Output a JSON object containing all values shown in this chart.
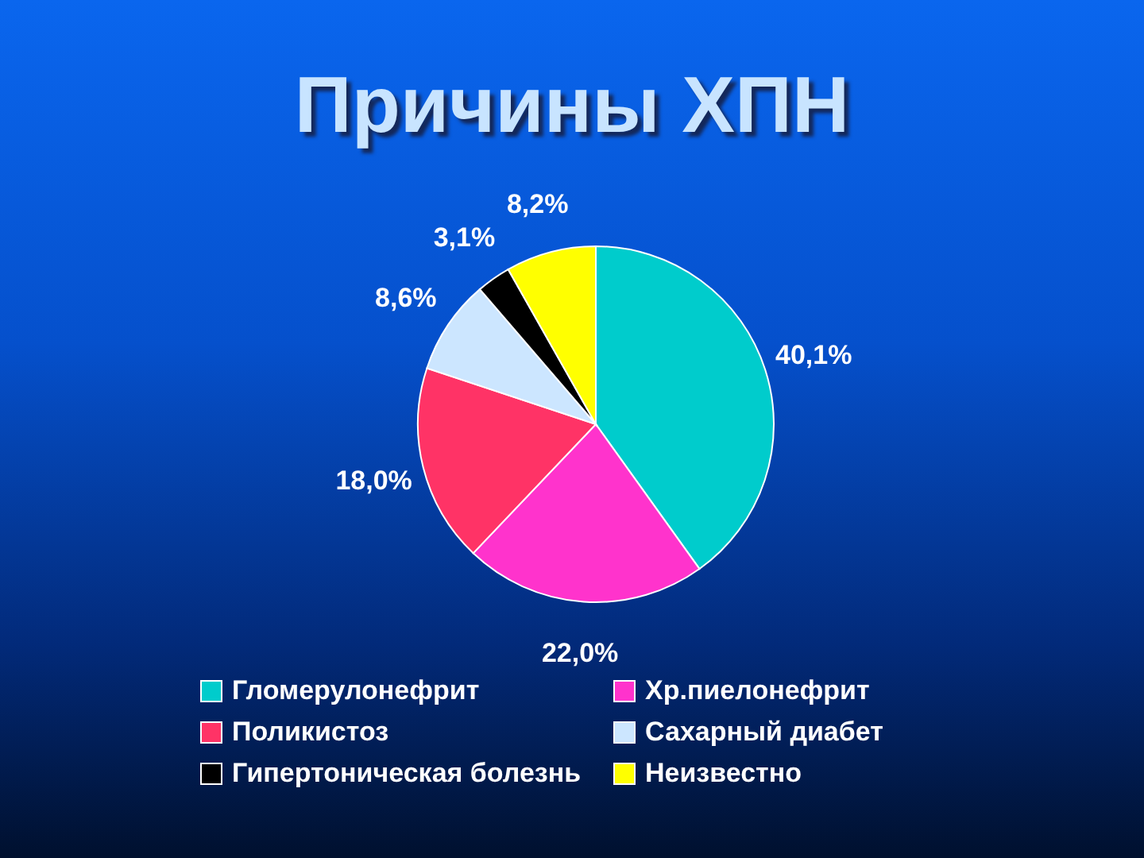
{
  "chart_data": {
    "type": "pie",
    "title": "Причины ХПН",
    "categories": [
      "Гломерулонефрит",
      "Хр.пиелонефрит",
      "Поликистоз",
      "Сахарный диабет",
      "Гипертоническая болезнь",
      "Неизвестно"
    ],
    "values": [
      40.1,
      22.0,
      18.0,
      8.6,
      3.1,
      8.2
    ],
    "colors": [
      "#00cccc",
      "#ff33cc",
      "#ff3366",
      "#cce6ff",
      "#000000",
      "#ffff00"
    ],
    "value_labels": [
      "40,1%",
      "22,0%",
      "18,0%",
      "8,6%",
      "3,1%",
      "8,2%"
    ],
    "legend": "bottom"
  }
}
